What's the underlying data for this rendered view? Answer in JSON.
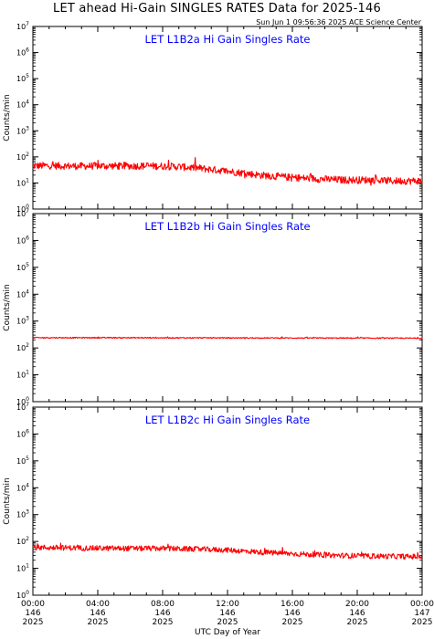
{
  "header": {
    "title": "LET ahead Hi-Gain SINGLES RATES Data for 2025-146",
    "stamp": "Sun Jun  1 09:56:36 2025 ACE Science Center"
  },
  "colors": {
    "series": "#ff0000",
    "panel_title": "#0000ff",
    "axes": "#000000"
  },
  "chart_data": [
    {
      "type": "line",
      "title": "LET L1B2a Hi Gain Singles Rate",
      "ylabel": "Counts/min",
      "xlabel": "UTC Day of Year",
      "yscale": "log",
      "ylim": [
        1,
        10000000
      ],
      "xlim": [
        "2025-146 00:00",
        "2025-147 00:00"
      ],
      "yticks": [
        "10^0",
        "10^1",
        "10^2",
        "10^3",
        "10^4",
        "10^5",
        "10^6",
        "10^7"
      ],
      "series": [
        {
          "hours": [
            0,
            1,
            2,
            3,
            4,
            5,
            6,
            7,
            8,
            9,
            10,
            11,
            12,
            13,
            14,
            15,
            16,
            17,
            18,
            19,
            20,
            21,
            22,
            23,
            24
          ],
          "values": [
            45,
            46,
            45,
            44,
            45,
            45,
            45,
            45,
            44,
            42,
            38,
            33,
            28,
            24,
            20,
            18,
            16,
            15,
            14,
            13,
            13,
            13,
            12,
            12,
            12
          ],
          "noise_decades": 0.14
        }
      ]
    },
    {
      "type": "line",
      "title": "LET L1B2b Hi Gain Singles Rate",
      "ylabel": "Counts/min",
      "xlabel": "UTC Day of Year",
      "yscale": "log",
      "ylim": [
        1,
        10000000
      ],
      "xlim": [
        "2025-146 00:00",
        "2025-147 00:00"
      ],
      "yticks": [
        "10^0",
        "10^1",
        "10^2",
        "10^3",
        "10^4",
        "10^5",
        "10^6",
        "10^7"
      ],
      "series": [
        {
          "hours": [
            0,
            4,
            8,
            12,
            16,
            20,
            24
          ],
          "values": [
            240,
            240,
            238,
            236,
            234,
            232,
            230
          ],
          "noise_decades": 0.02
        }
      ]
    },
    {
      "type": "line",
      "title": "LET L1B2c Hi Gain Singles Rate",
      "ylabel": "Counts/min",
      "xlabel": "UTC Day of Year",
      "yscale": "log",
      "ylim": [
        1,
        10000000
      ],
      "xlim": [
        "2025-146 00:00",
        "2025-147 00:00"
      ],
      "yticks": [
        "10^0",
        "10^1",
        "10^2",
        "10^3",
        "10^4",
        "10^5",
        "10^6",
        "10^7"
      ],
      "series": [
        {
          "hours": [
            0,
            2,
            4,
            6,
            8,
            10,
            12,
            14,
            16,
            18,
            20,
            22,
            24
          ],
          "values": [
            60,
            58,
            56,
            55,
            55,
            52,
            48,
            40,
            35,
            31,
            29,
            28,
            27
          ],
          "noise_decades": 0.1
        }
      ]
    }
  ],
  "xaxis": {
    "label": "UTC Day of Year",
    "ticks": [
      {
        "time": "00:00",
        "doy": "146",
        "year": "2025"
      },
      {
        "time": "04:00",
        "doy": "146",
        "year": "2025"
      },
      {
        "time": "08:00",
        "doy": "146",
        "year": "2025"
      },
      {
        "time": "12:00",
        "doy": "146",
        "year": "2025"
      },
      {
        "time": "16:00",
        "doy": "146",
        "year": "2025"
      },
      {
        "time": "20:00",
        "doy": "146",
        "year": "2025"
      },
      {
        "time": "00:00",
        "doy": "147",
        "year": "2025"
      }
    ]
  }
}
